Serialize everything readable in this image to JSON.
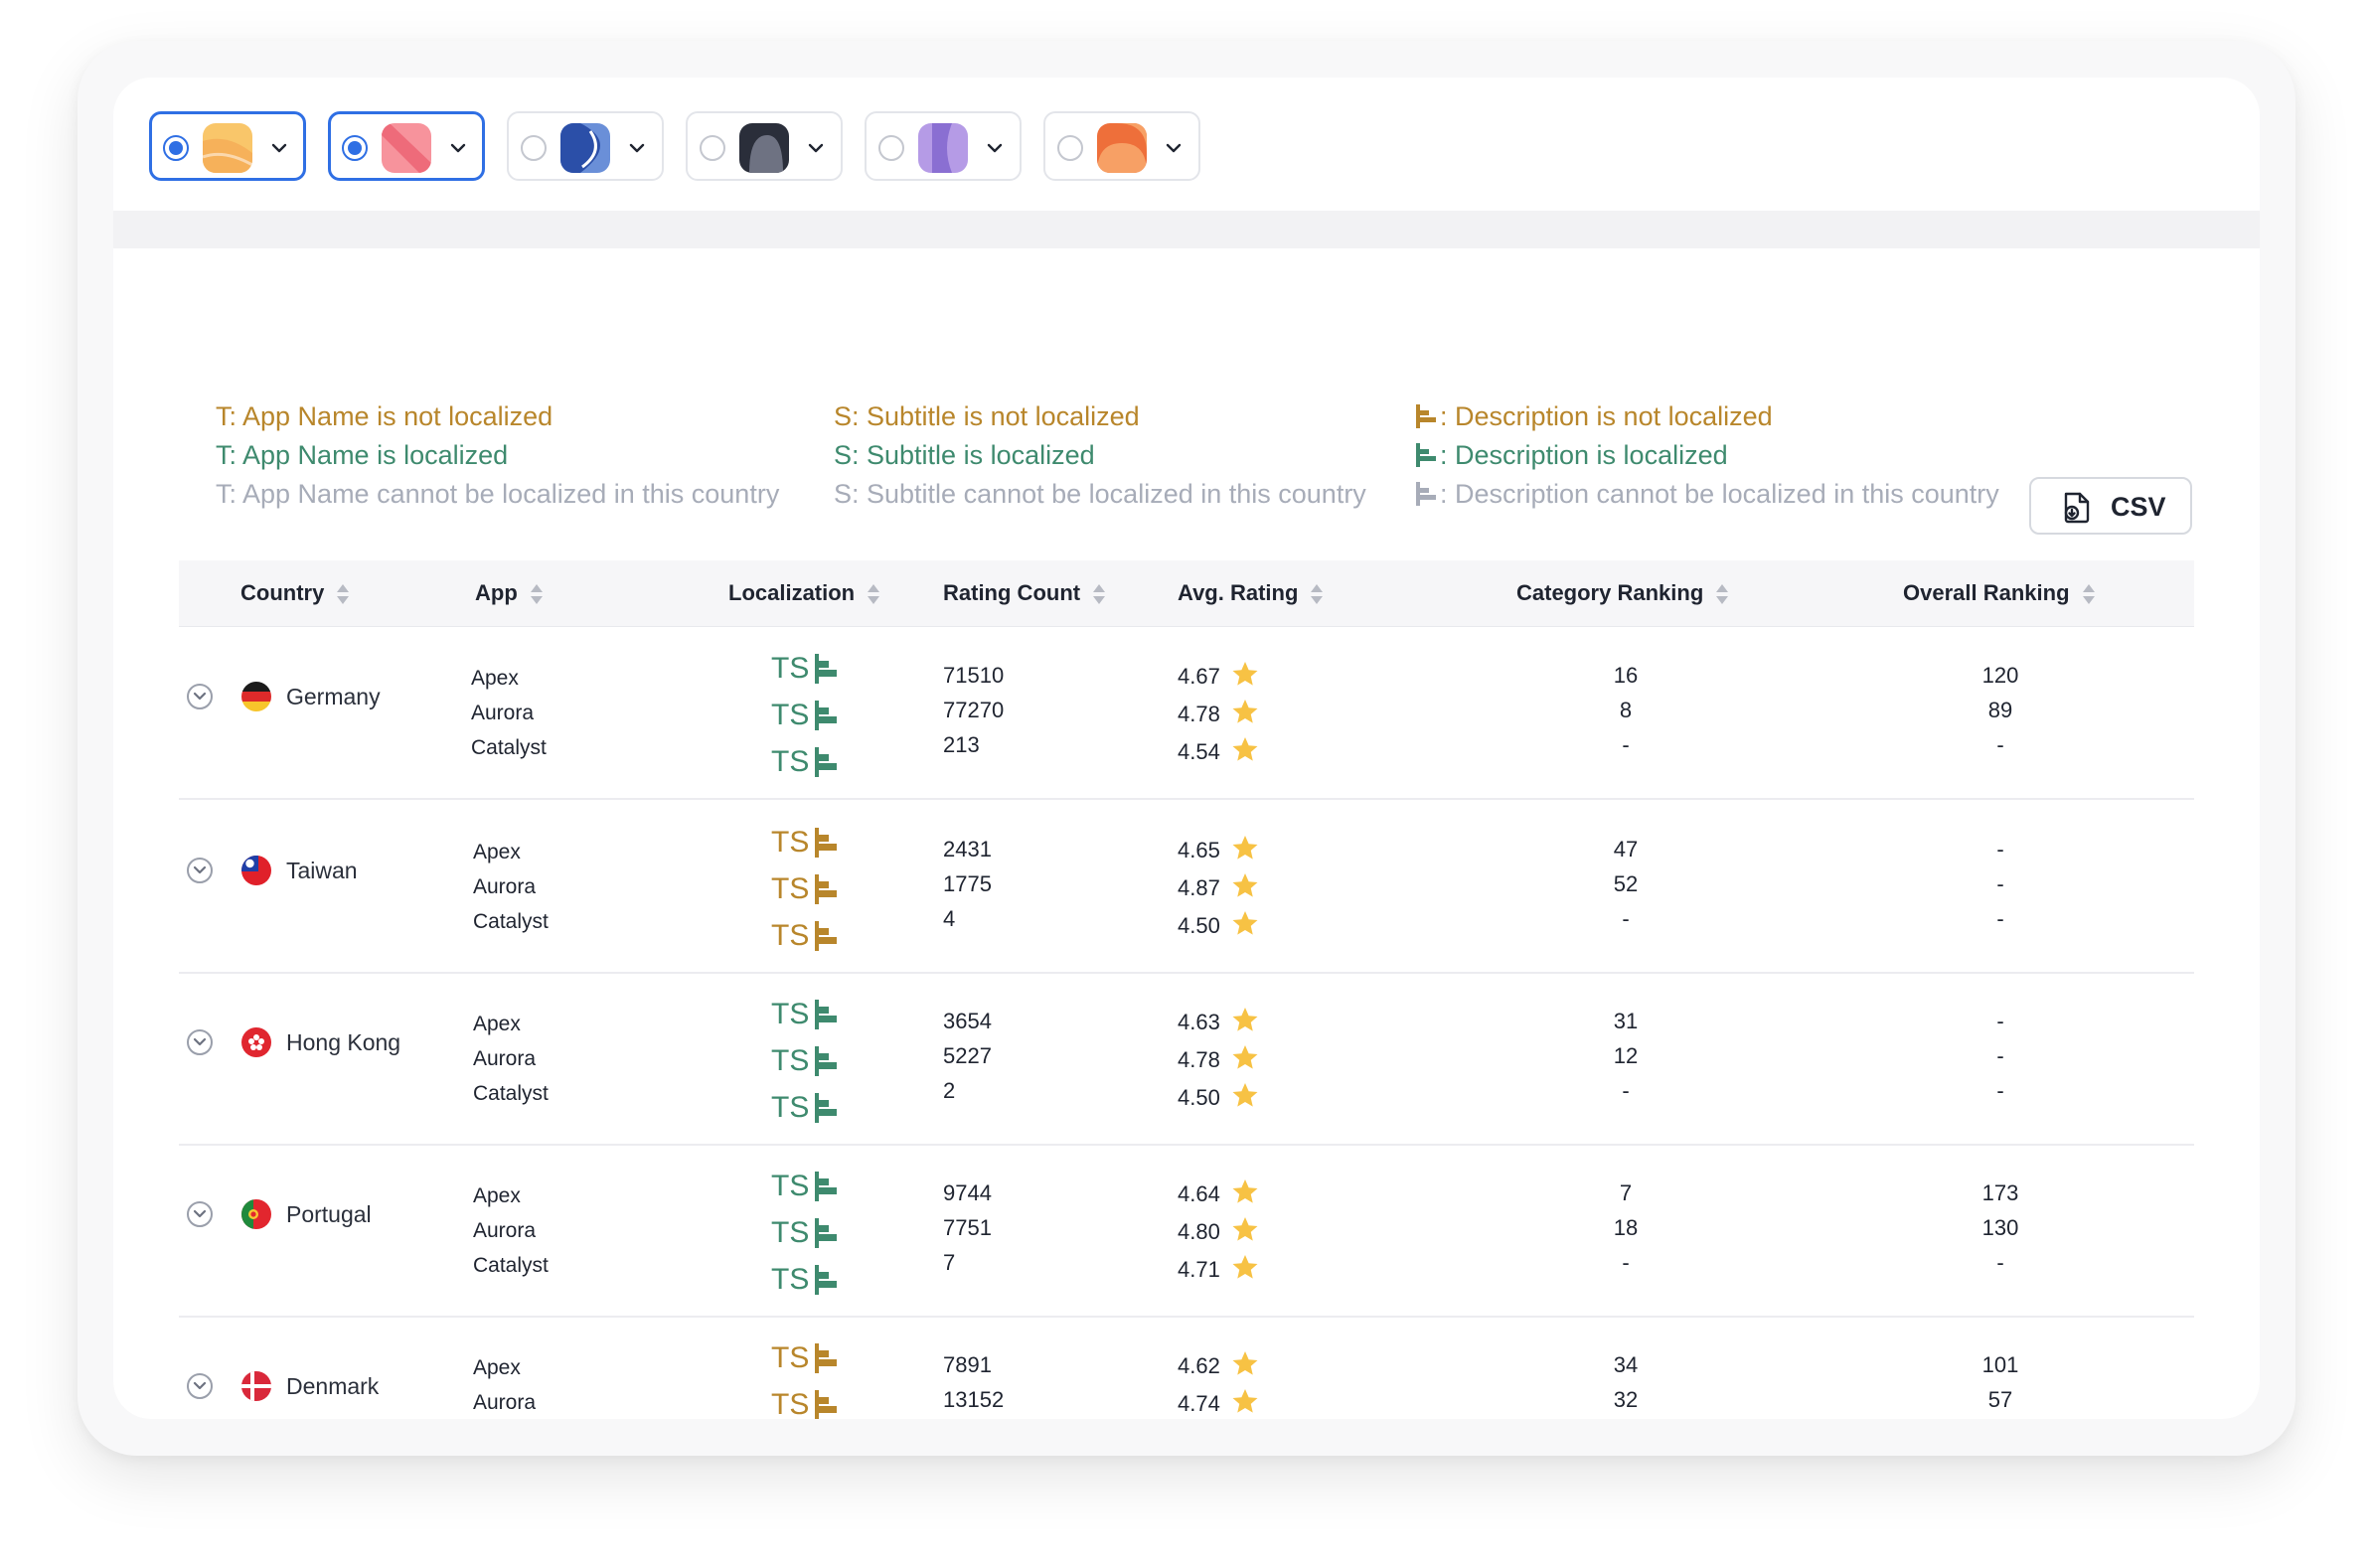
{
  "toolbar": {
    "apps": [
      {
        "selected": true,
        "colors": [
          "#f9c66a",
          "#f6b15a"
        ],
        "icon": "app-icon-yellow"
      },
      {
        "selected": true,
        "colors": [
          "#f7939c",
          "#ee6b7a"
        ],
        "icon": "app-icon-pink"
      },
      {
        "selected": false,
        "colors": [
          "#6a8fd8",
          "#2b4fa8"
        ],
        "icon": "app-icon-blue"
      },
      {
        "selected": false,
        "colors": [
          "#6e7282",
          "#2a2e3a"
        ],
        "icon": "app-icon-dark"
      },
      {
        "selected": false,
        "colors": [
          "#b59be6",
          "#8a6fd2"
        ],
        "icon": "app-icon-purple"
      },
      {
        "selected": false,
        "colors": [
          "#f7a065",
          "#ee6f3a"
        ],
        "icon": "app-icon-orange"
      }
    ]
  },
  "legend": {
    "app_name": [
      "T: App Name is not localized",
      "T: App Name is localized",
      "T: App Name cannot be localized in this country"
    ],
    "subtitle": [
      "S: Subtitle is not localized",
      "S: Subtitle is localized",
      "S: Subtitle cannot be localized in this country"
    ],
    "description": [
      ": Description is not localized",
      ": Description is localized",
      ": Description cannot be localized in this country"
    ]
  },
  "csv_button": {
    "label": "CSV"
  },
  "columns": {
    "country": "Country",
    "app": "App",
    "localization": "Localization",
    "rating_count": "Rating Count",
    "avg_rating": "Avg. Rating",
    "category_ranking": "Category Ranking",
    "overall_ranking": "Overall Ranking"
  },
  "colors": {
    "not_localized": "#b8862b",
    "localized": "#3e8a6e",
    "unavailable": "#a7acb8",
    "star": "#f7c244",
    "accent": "#2f6fe4"
  },
  "rows": [
    {
      "country": "Germany",
      "flag": "germany-flag-icon",
      "apps": [
        "Apex",
        "Aurora",
        "Catalyst"
      ],
      "localization": [
        {
          "text": "TS",
          "state": "localized"
        },
        {
          "text": "TS",
          "state": "localized"
        },
        {
          "text": "TS",
          "state": "localized"
        }
      ],
      "rating_count": [
        "71510",
        "77270",
        "213"
      ],
      "avg_rating": [
        "4.67",
        "4.78",
        "4.54"
      ],
      "category_ranking": [
        "16",
        "8",
        "-"
      ],
      "overall_ranking": [
        "120",
        "89",
        "-"
      ]
    },
    {
      "country": "Taiwan",
      "flag": "taiwan-flag-icon",
      "apps": [
        "Apex",
        "Aurora",
        "Catalyst"
      ],
      "localization": [
        {
          "text": "TS",
          "state": "not_localized"
        },
        {
          "text": "TS",
          "state": "not_localized"
        },
        {
          "text": "TS",
          "state": "not_localized"
        }
      ],
      "rating_count": [
        "2431",
        "1775",
        "4"
      ],
      "avg_rating": [
        "4.65",
        "4.87",
        "4.50"
      ],
      "category_ranking": [
        "47",
        "52",
        "-"
      ],
      "overall_ranking": [
        "-",
        "-",
        "-"
      ]
    },
    {
      "country": "Hong Kong",
      "flag": "hong-kong-flag-icon",
      "apps": [
        "Apex",
        "Aurora",
        "Catalyst"
      ],
      "localization": [
        {
          "text": "TS",
          "state": "localized"
        },
        {
          "text": "TS",
          "state": "localized"
        },
        {
          "text": "TS",
          "state": "localized"
        }
      ],
      "rating_count": [
        "3654",
        "5227",
        "2"
      ],
      "avg_rating": [
        "4.63",
        "4.78",
        "4.50"
      ],
      "category_ranking": [
        "31",
        "12",
        "-"
      ],
      "overall_ranking": [
        "-",
        "-",
        "-"
      ]
    },
    {
      "country": "Portugal",
      "flag": "portugal-flag-icon",
      "apps": [
        "Apex",
        "Aurora",
        "Catalyst"
      ],
      "localization": [
        {
          "text": "TS",
          "state": "localized"
        },
        {
          "text": "TS",
          "state": "localized"
        },
        {
          "text": "TS",
          "state": "localized"
        }
      ],
      "rating_count": [
        "9744",
        "7751",
        "7"
      ],
      "avg_rating": [
        "4.64",
        "4.80",
        "4.71"
      ],
      "category_ranking": [
        "7",
        "18",
        "-"
      ],
      "overall_ranking": [
        "173",
        "130",
        "-"
      ]
    },
    {
      "country": "Denmark",
      "flag": "denmark-flag-icon",
      "apps": [
        "Apex",
        "Aurora"
      ],
      "localization": [
        {
          "text": "TS",
          "state": "not_localized"
        },
        {
          "text": "TS",
          "state": "not_localized"
        }
      ],
      "rating_count": [
        "7891",
        "13152"
      ],
      "avg_rating": [
        "4.62",
        "4.74"
      ],
      "category_ranking": [
        "34",
        "32"
      ],
      "overall_ranking": [
        "101",
        "57"
      ]
    }
  ]
}
